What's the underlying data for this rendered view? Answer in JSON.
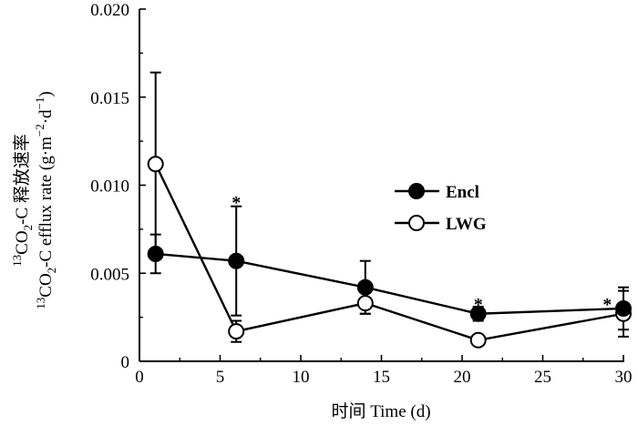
{
  "chart_data": {
    "type": "line",
    "xlabel": "时间 Time (d)",
    "ylabel_line1": "13CO2-C 释放速率",
    "ylabel_line2": "13CO2-C efflux rate (g·m−2·d−1)",
    "xlim": [
      0,
      30
    ],
    "ylim": [
      0,
      0.02
    ],
    "x_ticks": [
      0,
      5,
      10,
      15,
      20,
      25,
      30
    ],
    "y_ticks": [
      0,
      0.005,
      0.01,
      0.015,
      0.02
    ],
    "x_tick_labels": [
      "0",
      "5",
      "10",
      "15",
      "20",
      "25",
      "30"
    ],
    "y_tick_labels": [
      "0",
      "0.005",
      "0.010",
      "0.015",
      "0.020"
    ],
    "grid": false,
    "legend_position": "right",
    "series": [
      {
        "name": "Encl",
        "marker": "filled-circle",
        "x": [
          1,
          6,
          14,
          21,
          30
        ],
        "y": [
          0.0061,
          0.0057,
          0.0042,
          0.0027,
          0.003
        ],
        "err": [
          0.0011,
          0.0031,
          0.0015,
          0.0004,
          0.0012
        ]
      },
      {
        "name": "LWG",
        "marker": "open-circle",
        "x": [
          1,
          6,
          14,
          21,
          30
        ],
        "y": [
          0.0112,
          0.0017,
          0.0033,
          0.0012,
          0.0027
        ],
        "err": [
          0.0052,
          0.0006,
          0.0006,
          0,
          0.0013
        ]
      }
    ],
    "significance": [
      {
        "x": 6,
        "y": 0.0092,
        "text": "*"
      },
      {
        "x": 21,
        "y": 0.0034,
        "text": "*"
      },
      {
        "x": 29,
        "y": 0.0034,
        "text": "*"
      }
    ]
  }
}
